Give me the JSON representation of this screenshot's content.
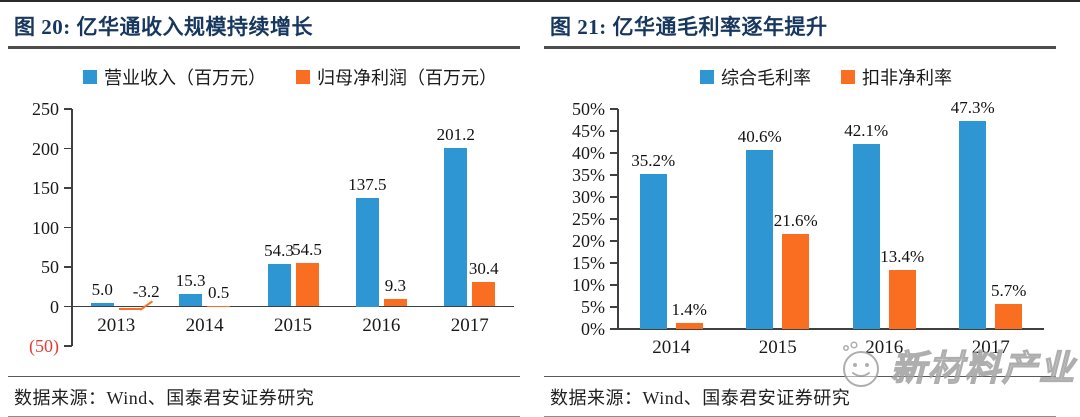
{
  "page": {
    "watermark_text": "新材料产业"
  },
  "figures": [
    {
      "heading": "图 20:  亿华通收入规模持续增长",
      "source": "数据来源：Wind、国泰君安证券研究"
    },
    {
      "heading": "图 21:  亿华通毛利率逐年提升",
      "source": "数据来源：Wind、国泰君安证券研究"
    }
  ],
  "chart_data": [
    {
      "type": "bar",
      "title": "亿华通收入规模持续增长",
      "categories": [
        "2013",
        "2014",
        "2015",
        "2016",
        "2017"
      ],
      "series": [
        {
          "name": "营业收入（百万元）",
          "color": "#2E96D2",
          "values": [
            5.0,
            15.3,
            54.3,
            137.5,
            201.2
          ],
          "labels": [
            "5.0",
            "15.3",
            "54.3",
            "137.5",
            "201.2"
          ]
        },
        {
          "name": "归母净利润（百万元）",
          "color": "#F96E20",
          "values": [
            -3.2,
            0.5,
            54.5,
            9.3,
            30.4
          ],
          "labels": [
            "-3.2",
            "0.5",
            "54.5",
            "9.3",
            "30.4"
          ]
        }
      ],
      "ylim": [
        -50,
        250
      ],
      "yticks": [
        {
          "v": 250,
          "label": "250"
        },
        {
          "v": 200,
          "label": "200"
        },
        {
          "v": 150,
          "label": "150"
        },
        {
          "v": 100,
          "label": "100"
        },
        {
          "v": 50,
          "label": "50"
        },
        {
          "v": 0,
          "label": "0"
        },
        {
          "v": -50,
          "label": "(50)",
          "color": "#E43B33"
        }
      ],
      "grid": false,
      "legend_position": "top",
      "xlabel": "",
      "ylabel": ""
    },
    {
      "type": "bar",
      "title": "亿华通毛利率逐年提升",
      "categories": [
        "2014",
        "2015",
        "2016",
        "2017"
      ],
      "series": [
        {
          "name": "综合毛利率",
          "color": "#2E96D2",
          "values": [
            35.2,
            40.6,
            42.1,
            47.3
          ],
          "labels": [
            "35.2%",
            "40.6%",
            "42.1%",
            "47.3%"
          ]
        },
        {
          "name": "扣非净利率",
          "color": "#F96E20",
          "values": [
            1.4,
            21.6,
            13.4,
            5.7
          ],
          "labels": [
            "1.4%",
            "21.6%",
            "13.4%",
            "5.7%"
          ]
        }
      ],
      "ylim": [
        0,
        50
      ],
      "yticks": [
        {
          "v": 50,
          "label": "50%"
        },
        {
          "v": 45,
          "label": "45%"
        },
        {
          "v": 40,
          "label": "40%"
        },
        {
          "v": 35,
          "label": "35%"
        },
        {
          "v": 30,
          "label": "30%"
        },
        {
          "v": 25,
          "label": "25%"
        },
        {
          "v": 20,
          "label": "20%"
        },
        {
          "v": 15,
          "label": "15%"
        },
        {
          "v": 10,
          "label": "10%"
        },
        {
          "v": 5,
          "label": "5%"
        },
        {
          "v": 0,
          "label": "0%"
        }
      ],
      "grid": false,
      "legend_position": "top",
      "xlabel": "",
      "ylabel": ""
    }
  ]
}
